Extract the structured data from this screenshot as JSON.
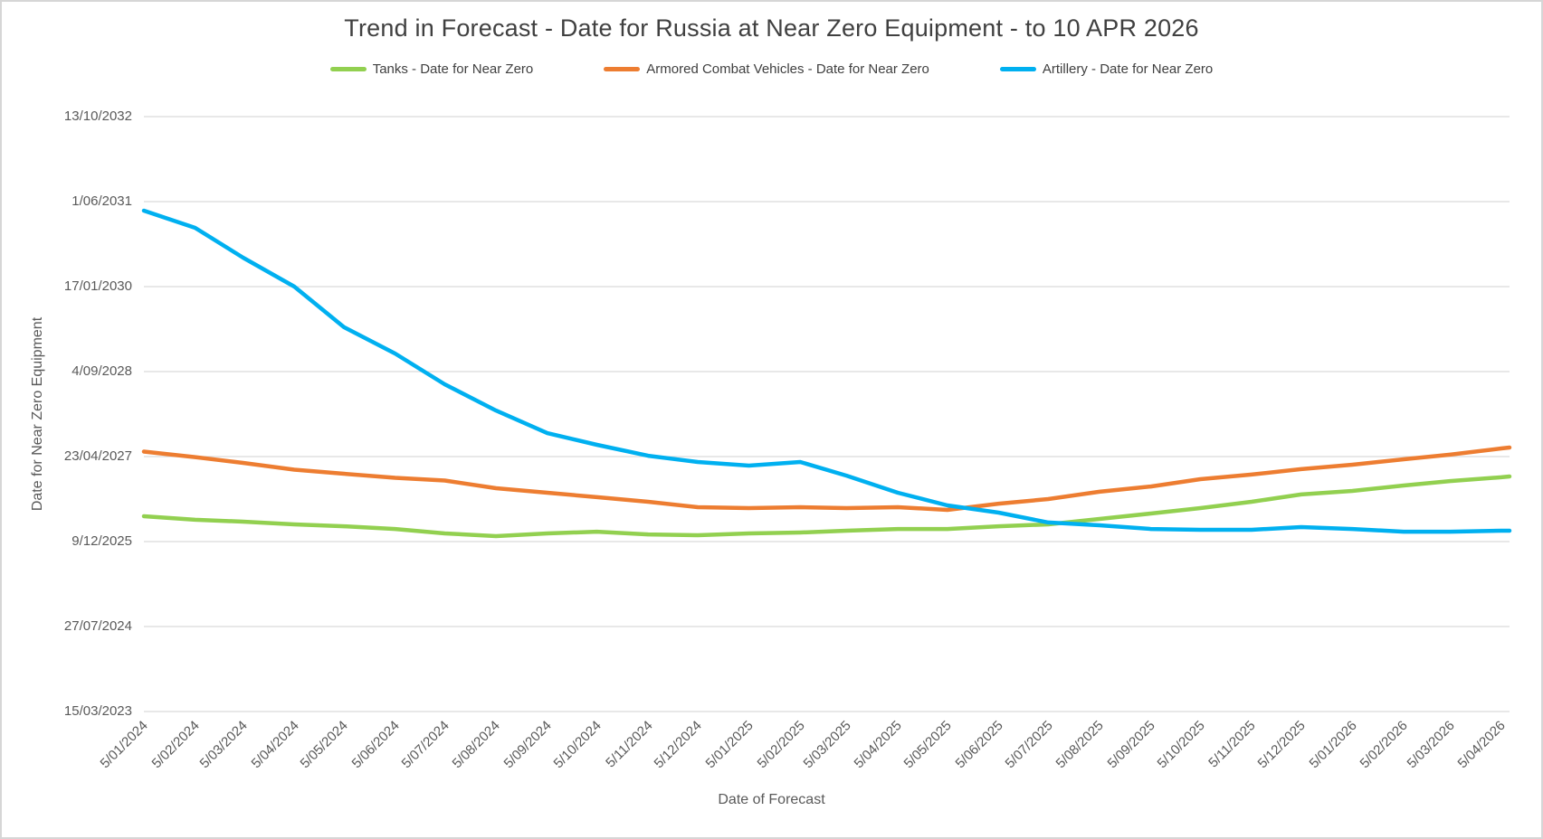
{
  "colors": {
    "grid": "#d9d9d9",
    "title_text": "#404040",
    "axis_text": "#595959",
    "tanks": "#92D050",
    "acv": "#ED7D31",
    "artillery": "#00B0F0"
  },
  "chart_data": {
    "type": "line",
    "title": "Trend in Forecast - Date for Russia at Near Zero Equipment - to 10 APR 2026",
    "xlabel": "Date of Forecast",
    "ylabel": "Date for Near Zero Equipment",
    "legend_position": "top",
    "grid": "horizontal",
    "y_tick_labels": [
      "13/10/2032",
      "1/06/2031",
      "17/01/2030",
      "4/09/2028",
      "23/04/2027",
      "9/12/2025",
      "27/07/2024",
      "15/03/2023"
    ],
    "x_tick_labels": [
      "5/01/2024",
      "5/02/2024",
      "5/03/2024",
      "5/04/2024",
      "5/05/2024",
      "5/06/2024",
      "5/07/2024",
      "5/08/2024",
      "5/09/2024",
      "5/10/2024",
      "5/11/2024",
      "5/12/2024",
      "5/01/2025",
      "5/02/2025",
      "5/03/2025",
      "5/04/2025",
      "5/05/2025",
      "5/06/2025",
      "5/07/2025",
      "5/08/2025",
      "5/09/2025",
      "5/10/2025",
      "5/11/2025",
      "5/12/2025",
      "5/01/2026",
      "5/02/2026",
      "5/03/2026",
      "5/04/2026"
    ],
    "x": [
      "5/01/2024",
      "5/02/2024",
      "5/03/2024",
      "5/04/2024",
      "5/05/2024",
      "5/06/2024",
      "5/07/2024",
      "5/08/2024",
      "5/09/2024",
      "5/10/2024",
      "5/11/2024",
      "5/12/2024",
      "5/01/2025",
      "5/02/2025",
      "5/03/2025",
      "5/04/2025",
      "5/05/2025",
      "5/06/2025",
      "5/07/2025",
      "5/08/2025",
      "5/09/2025",
      "5/10/2025",
      "5/11/2025",
      "5/12/2025",
      "5/01/2026",
      "5/02/2026",
      "5/03/2026",
      "5/04/2026",
      "10/04/2026"
    ],
    "series": [
      {
        "id": "tanks",
        "name": "Tanks - Date for Near Zero",
        "color": "#92D050",
        "values": [
          "7/05/2026",
          "16/04/2026",
          "5/04/2026",
          "20/03/2026",
          "9/03/2026",
          "21/02/2026",
          "26/01/2026",
          "10/01/2026",
          "26/01/2026",
          "5/02/2026",
          "20/01/2026",
          "15/01/2026",
          "26/01/2026",
          "31/01/2026",
          "11/02/2026",
          "21/02/2026",
          "21/02/2026",
          "9/03/2026",
          "20/03/2026",
          "21/04/2026",
          "23/05/2026",
          "24/06/2026",
          "31/07/2026",
          "12/09/2026",
          "3/10/2026",
          "4/11/2026",
          "30/11/2026",
          "22/12/2026",
          "27/12/2026"
        ]
      },
      {
        "id": "acv",
        "name": "Armored Combat Vehicles - Date for Near Zero",
        "color": "#ED7D31",
        "values": [
          "22/05/2027",
          "20/04/2027",
          "17/03/2027",
          "5/02/2027",
          "12/01/2027",
          "19/12/2026",
          "3/12/2026",
          "19/10/2026",
          "22/09/2026",
          "27/08/2026",
          "31/07/2026",
          "29/06/2026",
          "24/06/2026",
          "29/06/2026",
          "24/06/2026",
          "29/06/2026",
          "13/06/2026",
          "20/07/2026",
          "16/08/2026",
          "28/09/2026",
          "29/10/2026",
          "11/12/2026",
          "7/01/2027",
          "8/02/2027",
          "6/03/2027",
          "7/04/2027",
          "4/05/2027",
          "10/06/2027",
          "15/06/2027"
        ]
      },
      {
        "id": "artillery",
        "name": "Artillery - Date for Near Zero",
        "color": "#00B0F0",
        "values": [
          "9/04/2031",
          "29/12/2030",
          "6/07/2030",
          "17/01/2030",
          "23/05/2029",
          "19/12/2028",
          "21/06/2028",
          "19/01/2028",
          "8/09/2027",
          "1/07/2027",
          "28/04/2027",
          "22/03/2027",
          "1/03/2027",
          "22/03/2027",
          "1/01/2027",
          "22/09/2026",
          "10/07/2026",
          "28/05/2026",
          "31/03/2026",
          "15/03/2026",
          "21/02/2026",
          "16/02/2026",
          "16/02/2026",
          "4/03/2026",
          "21/02/2026",
          "5/02/2026",
          "5/02/2026",
          "11/02/2026",
          "11/02/2026"
        ]
      }
    ]
  }
}
